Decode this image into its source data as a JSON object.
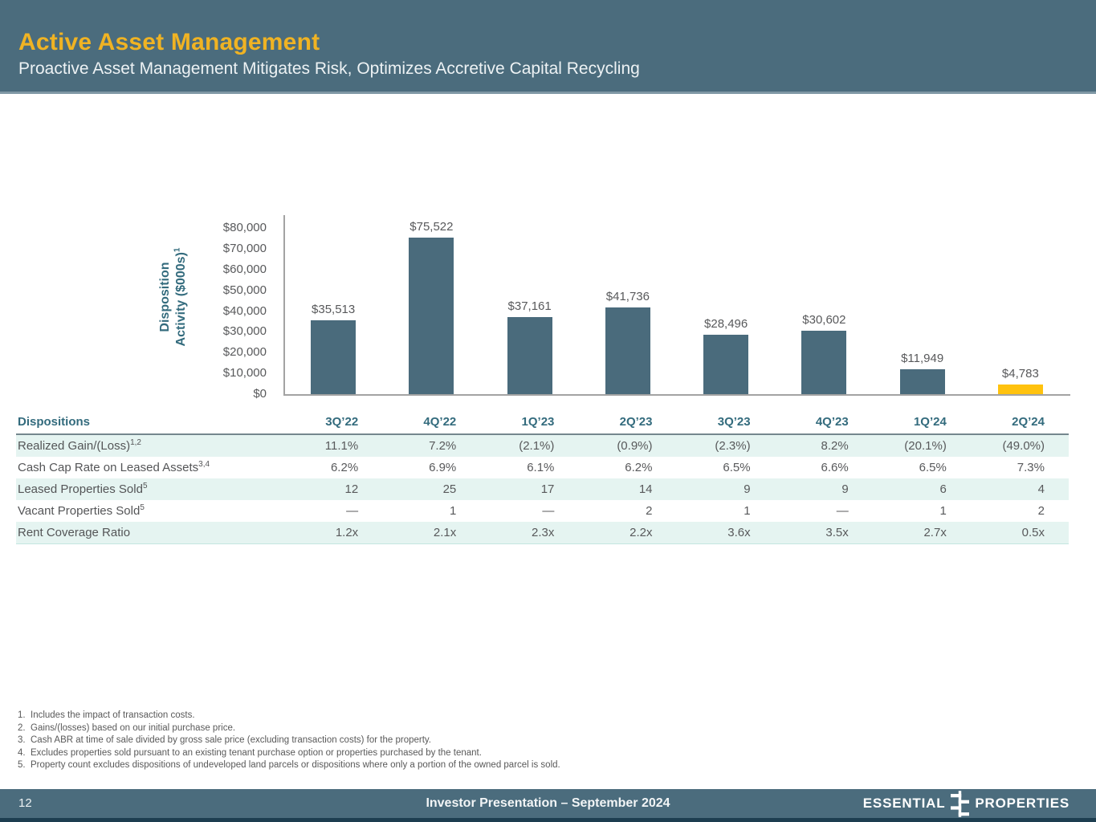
{
  "header": {
    "title": "Active Asset Management",
    "subtitle": "Proactive Asset Management Mitigates Risk, Optimizes Accretive Capital Recycling"
  },
  "chart_data": {
    "type": "bar",
    "title": "",
    "ylabel": "Disposition Activity ($000s)",
    "ylabel_line1": "Disposition",
    "ylabel_line2": "Activity ($000s)",
    "ylabel_sup": "1",
    "xlabel": "",
    "categories": [
      "3Q’22",
      "4Q’22",
      "1Q’23",
      "2Q’23",
      "3Q’23",
      "4Q’23",
      "1Q’24",
      "2Q’24"
    ],
    "values": [
      35513,
      75522,
      37161,
      41736,
      28496,
      30602,
      11949,
      4783
    ],
    "value_labels": [
      "$35,513",
      "$75,522",
      "$37,161",
      "$41,736",
      "$28,496",
      "$30,602",
      "$11,949",
      "$4,783"
    ],
    "ylim": [
      0,
      80000
    ],
    "ytick_labels": [
      "$80,000",
      "$70,000",
      "$60,000",
      "$50,000",
      "$40,000",
      "$30,000",
      "$20,000",
      "$10,000",
      "$0"
    ],
    "grid": "off",
    "legend": "none",
    "bar_color": "#4A6B7C",
    "highlight_color": "#FFC20E",
    "highlight_index": 7
  },
  "table": {
    "corner_label": "Dispositions",
    "columns": [
      "3Q’22",
      "4Q’22",
      "1Q’23",
      "2Q’23",
      "3Q’23",
      "4Q’23",
      "1Q’24",
      "2Q’24"
    ],
    "rows": [
      {
        "label": "Realized Gain/(Loss)",
        "sup": "1,2",
        "values": [
          "11.1%",
          "7.2%",
          "(2.1%)",
          "(0.9%)",
          "(2.3%)",
          "8.2%",
          "(20.1%)",
          "(49.0%)"
        ]
      },
      {
        "label": "Cash Cap Rate on Leased Assets",
        "sup": "3,4",
        "values": [
          "6.2%",
          "6.9%",
          "6.1%",
          "6.2%",
          "6.5%",
          "6.6%",
          "6.5%",
          "7.3%"
        ]
      },
      {
        "label": "Leased Properties Sold",
        "sup": "5",
        "values": [
          "12",
          "25",
          "17",
          "14",
          "9",
          "9",
          "6",
          "4"
        ]
      },
      {
        "label": "Vacant Properties Sold",
        "sup": "5",
        "values": [
          "—",
          "1",
          "—",
          "2",
          "1",
          "—",
          "1",
          "2"
        ]
      },
      {
        "label": "Rent Coverage Ratio",
        "sup": "",
        "values": [
          "1.2x",
          "2.1x",
          "2.3x",
          "2.2x",
          "3.6x",
          "3.5x",
          "2.7x",
          "0.5x"
        ]
      }
    ]
  },
  "footnotes": [
    "Includes the impact of transaction costs.",
    "Gains/(losses) based on our initial purchase price.",
    "Cash ABR at time of sale divided by gross sale price (excluding transaction costs) for the property.",
    "Excludes properties sold pursuant to an existing tenant purchase option or properties purchased by the tenant.",
    "Property count excludes dispositions of undeveloped land parcels or dispositions where only a portion of the owned parcel is sold."
  ],
  "footer": {
    "page_number": "12",
    "center_text": "Investor Presentation – September 2024",
    "logo_left": "ESSENTIAL",
    "logo_right": "PROPERTIES"
  },
  "colors": {
    "header_bg": "#4B6C7D",
    "title_gold": "#F0B323",
    "bar_slate": "#4A6B7C",
    "bar_highlight": "#FFC20E",
    "teal_text": "#336B7D",
    "body_text": "#58595B",
    "stripe": "#E5F4F1",
    "footer_strip": "#1D3E50"
  }
}
